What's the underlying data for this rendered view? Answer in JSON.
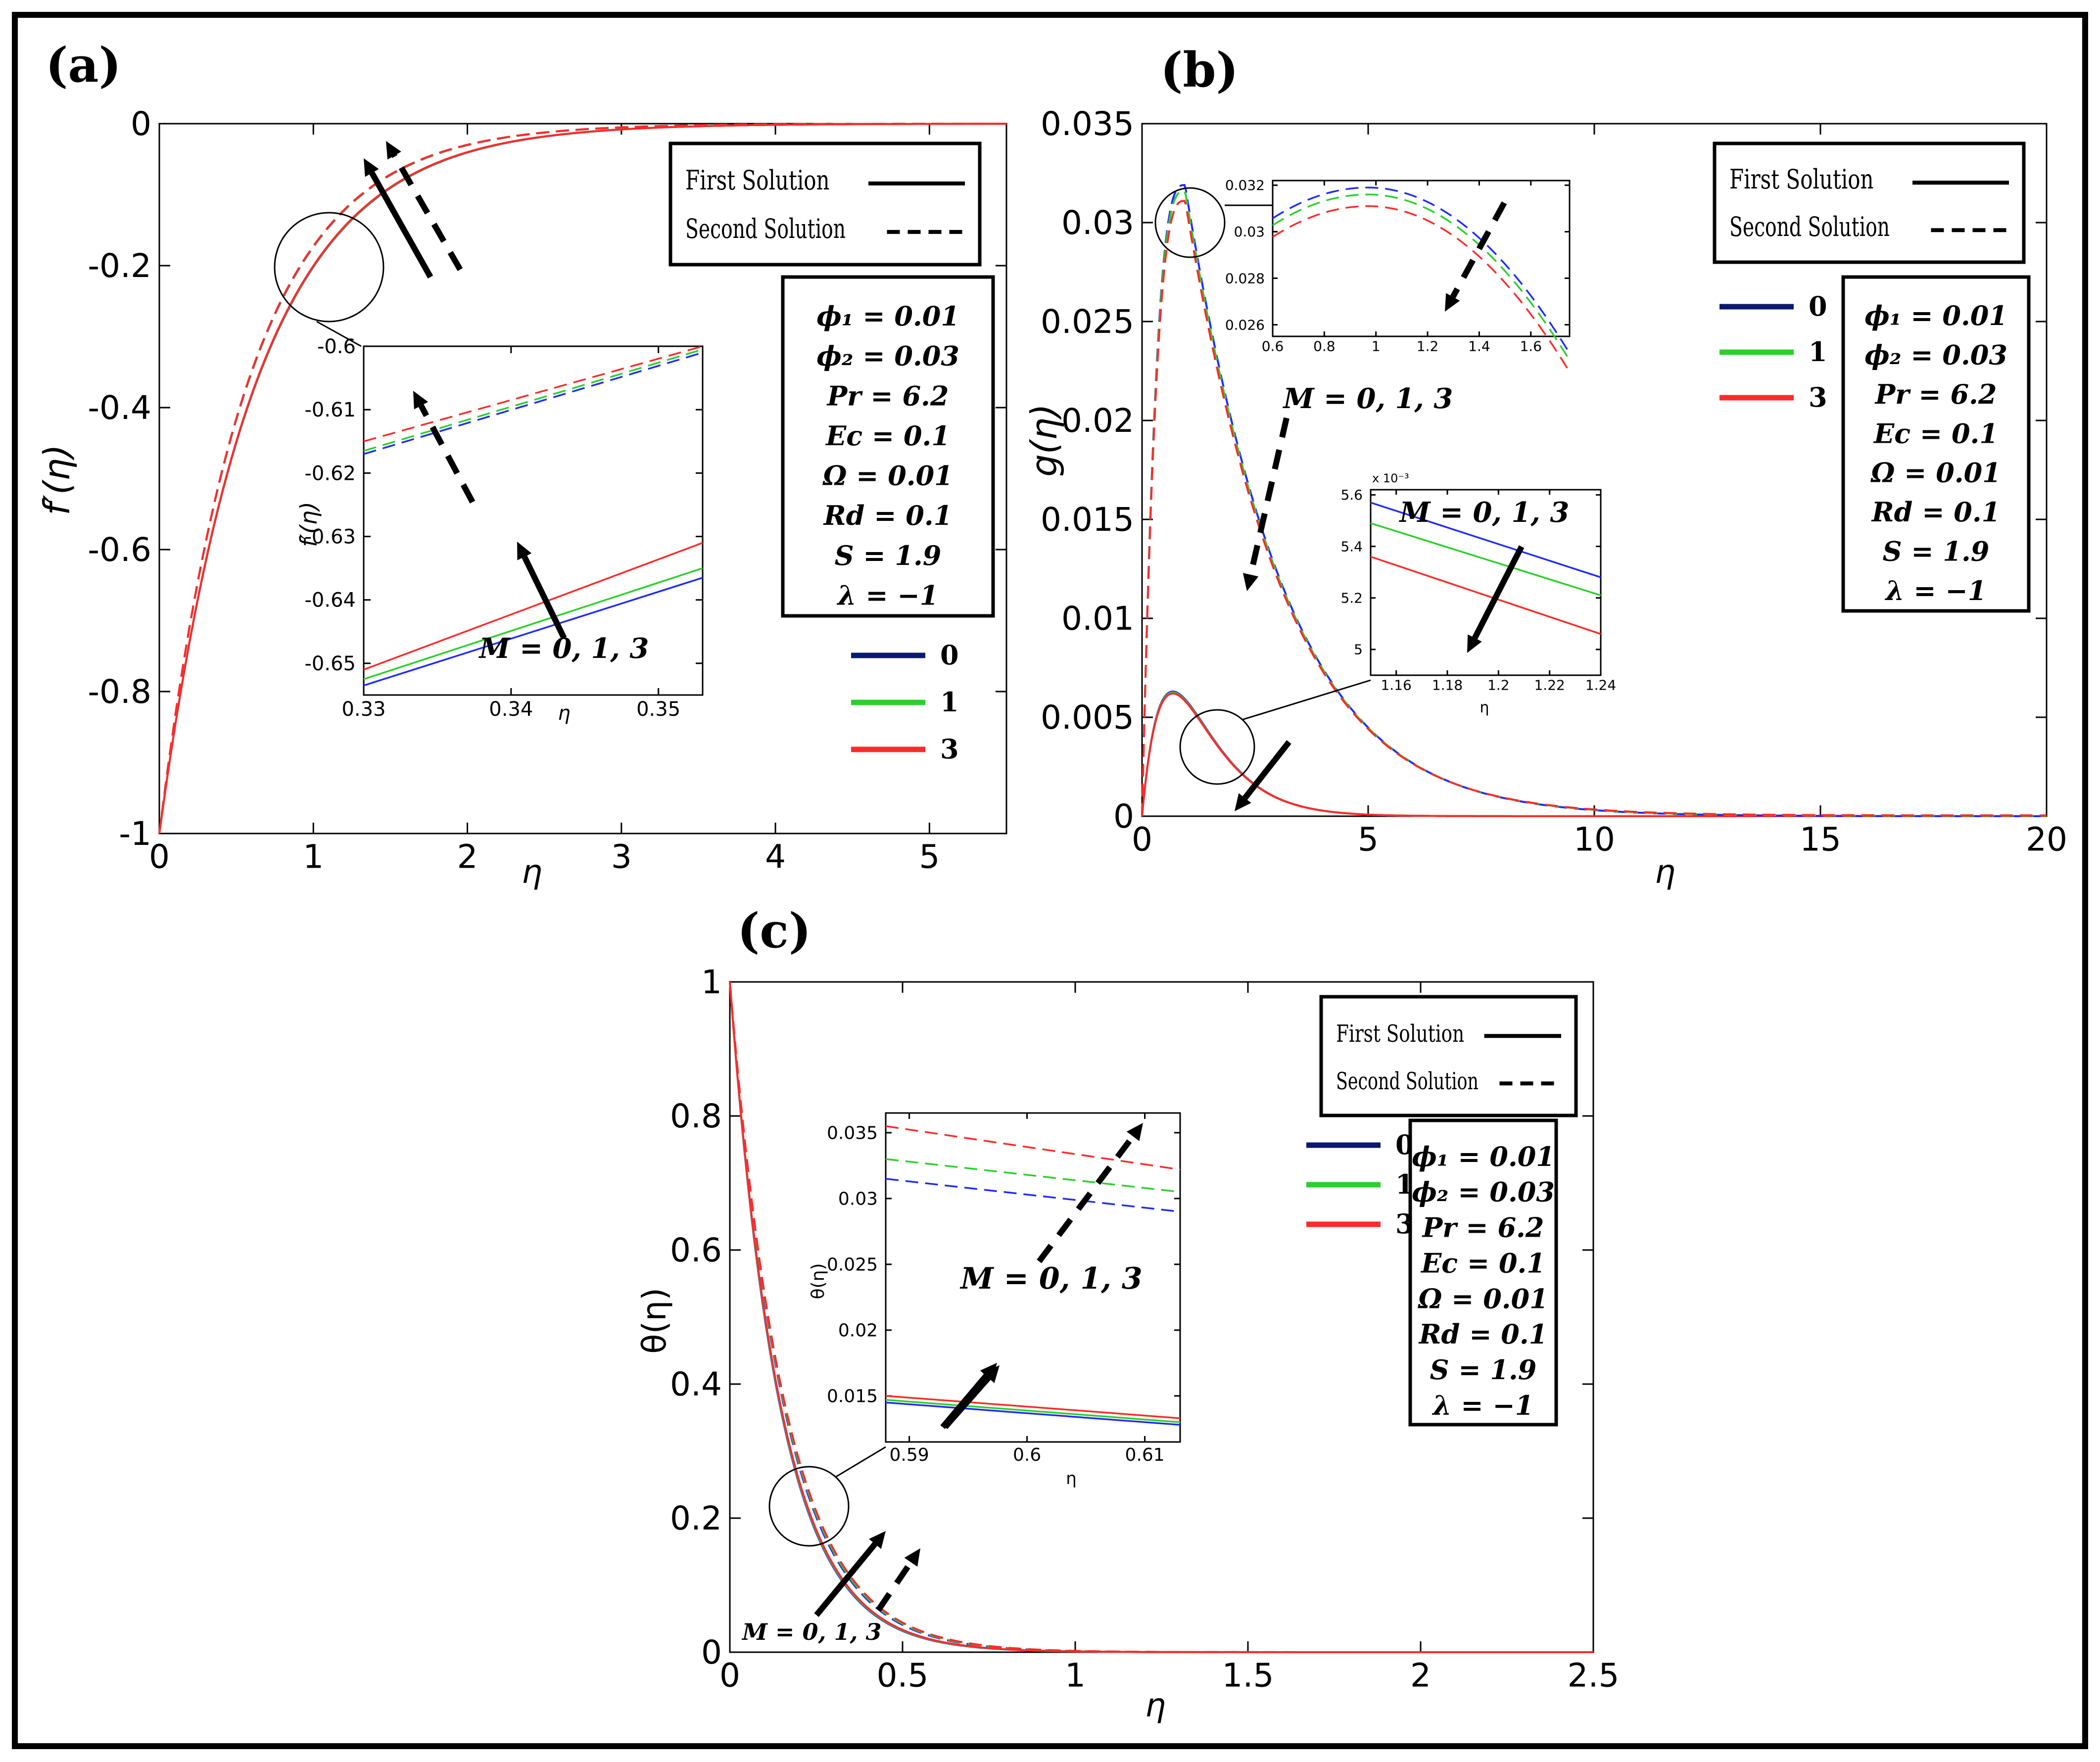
{
  "colors": {
    "m0": "#1f2bff",
    "m1": "#2bd02b",
    "m3": "#ff2a2a",
    "legend_m0": "#0b1a6e",
    "frame": "#000000"
  },
  "legend": {
    "first_solution": "First Solution",
    "second_solution": "Second Solution",
    "m_values": [
      "0",
      "1",
      "3"
    ]
  },
  "params": [
    "ϕ₁ = 0.01",
    "ϕ₂ = 0.03",
    "Pr = 6.2",
    "Ec = 0.1",
    "Ω = 0.01",
    "Rd = 0.1",
    "S = 1.9",
    "λ = −1"
  ],
  "annotation": "M = 0, 1, 3",
  "chart_data": [
    {
      "id": "a",
      "panel_label": "(a)",
      "type": "line",
      "xlabel": "η",
      "ylabel": "f′(η)",
      "xlim": [
        0,
        5.5
      ],
      "ylim": [
        -1,
        0
      ],
      "xticks": [
        0,
        1,
        2,
        3,
        4,
        5
      ],
      "xtick_labels": [
        "0",
        "1",
        "2",
        "3",
        "4",
        "5"
      ],
      "yticks": [
        -1,
        -0.8,
        -0.6,
        -0.4,
        -0.2,
        0
      ],
      "ytick_labels": [
        "-1",
        "-0.8",
        "-0.6",
        "-0.4",
        "-0.2",
        "0"
      ],
      "model": {
        "kind": "exp",
        "a": 1.6,
        "second_a": 1.75
      },
      "series": [
        {
          "name": "M = 0",
          "solution": "first"
        },
        {
          "name": "M = 1",
          "solution": "first"
        },
        {
          "name": "M = 3",
          "solution": "first"
        },
        {
          "name": "M = 0",
          "solution": "second"
        },
        {
          "name": "M = 1",
          "solution": "second"
        },
        {
          "name": "M = 3",
          "solution": "second"
        }
      ],
      "inset": {
        "xlim": [
          0.33,
          0.353
        ],
        "ylim": [
          -0.655,
          -0.6
        ],
        "xticks": [
          0.33,
          0.34,
          0.35
        ],
        "xtick_labels": [
          "0.33",
          "0.34",
          "0.35"
        ],
        "yticks": [
          -0.65,
          -0.64,
          -0.63,
          -0.62,
          -0.61,
          -0.6
        ],
        "ytick_labels": [
          "-0.65",
          "-0.64",
          "-0.63",
          "-0.62",
          "-0.61",
          "-0.6"
        ],
        "xlabel": "η",
        "ylabel": "f′(η)",
        "first": [
          {
            "x": [
              0.33,
              0.353
            ],
            "y": [
              -0.6535,
              -0.6365
            ]
          },
          {
            "x": [
              0.33,
              0.353
            ],
            "y": [
              -0.6525,
              -0.635
            ]
          },
          {
            "x": [
              0.33,
              0.353
            ],
            "y": [
              -0.651,
              -0.631
            ]
          }
        ],
        "second": [
          {
            "x": [
              0.33,
              0.353
            ],
            "y": [
              -0.617,
              -0.601
            ]
          },
          {
            "x": [
              0.33,
              0.353
            ],
            "y": [
              -0.6165,
              -0.6005
            ]
          },
          {
            "x": [
              0.33,
              0.353
            ],
            "y": [
              -0.615,
              -0.6
            ]
          }
        ]
      }
    },
    {
      "id": "b",
      "panel_label": "(b)",
      "type": "line",
      "xlabel": "η",
      "ylabel": "g(η)",
      "xlim": [
        0,
        20
      ],
      "ylim": [
        0,
        0.035
      ],
      "xticks": [
        0,
        5,
        10,
        15,
        20
      ],
      "xtick_labels": [
        "0",
        "5",
        "10",
        "15",
        "20"
      ],
      "yticks": [
        0,
        0.005,
        0.01,
        0.015,
        0.02,
        0.025,
        0.03,
        0.035
      ],
      "ytick_labels": [
        "0",
        "0.005",
        "0.01",
        "0.015",
        "0.02",
        "0.025",
        "0.03",
        "0.035"
      ],
      "peaks": {
        "first": {
          "eta": 0.68,
          "g": [
            0.0063,
            0.00625,
            0.0062
          ]
        },
        "second": {
          "eta": 0.95,
          "g": [
            0.0319,
            0.0316,
            0.0311
          ]
        }
      },
      "series": [
        {
          "name": "M = 0",
          "solution": "first"
        },
        {
          "name": "M = 1",
          "solution": "first"
        },
        {
          "name": "M = 3",
          "solution": "first"
        },
        {
          "name": "M = 0",
          "solution": "second"
        },
        {
          "name": "M = 1",
          "solution": "second"
        },
        {
          "name": "M = 3",
          "solution": "second"
        }
      ],
      "inset_top": {
        "xlim": [
          0.6,
          1.75
        ],
        "ylim": [
          0.0255,
          0.0322
        ],
        "xticks": [
          0.6,
          0.8,
          1,
          1.2,
          1.4,
          1.6
        ],
        "xtick_labels": [
          "0.6",
          "0.8",
          "1",
          "1.2",
          "1.4",
          "1.6"
        ],
        "yticks": [
          0.026,
          0.028,
          0.03,
          0.032
        ],
        "ytick_labels": [
          "0.026",
          "0.028",
          "0.03",
          "0.032"
        ]
      },
      "inset_mid": {
        "xlim": [
          1.15,
          1.24
        ],
        "ylim": [
          4.9,
          5.62
        ],
        "xticks": [
          1.16,
          1.18,
          1.2,
          1.22,
          1.24
        ],
        "xtick_labels": [
          "1.16",
          "1.18",
          "1.2",
          "1.22",
          "1.24"
        ],
        "yticks": [
          5,
          5.2,
          5.4,
          5.6
        ],
        "ytick_labels": [
          "5",
          "5.2",
          "5.4",
          "5.6"
        ],
        "exponent": "x 10⁻³",
        "xlabel": "η",
        "lines": [
          {
            "x": [
              1.15,
              1.24
            ],
            "y": [
              5.57,
              5.28
            ]
          },
          {
            "x": [
              1.15,
              1.24
            ],
            "y": [
              5.49,
              5.21
            ]
          },
          {
            "x": [
              1.15,
              1.24
            ],
            "y": [
              5.36,
              5.06
            ]
          }
        ]
      }
    },
    {
      "id": "c",
      "panel_label": "(c)",
      "type": "line",
      "xlabel": "η",
      "ylabel": "θ(η)",
      "xlim": [
        0,
        2.5
      ],
      "ylim": [
        0,
        1
      ],
      "xticks": [
        0,
        0.5,
        1,
        1.5,
        2,
        2.5
      ],
      "xtick_labels": [
        "0",
        "0.5",
        "1",
        "1.5",
        "2",
        "2.5"
      ],
      "yticks": [
        0,
        0.2,
        0.4,
        0.6,
        0.8,
        1
      ],
      "ytick_labels": [
        "0",
        "0.2",
        "0.4",
        "0.6",
        "0.8",
        "1"
      ],
      "model": {
        "kind": "exp",
        "a": 6.9,
        "second_a": 6.4
      },
      "series": [
        {
          "name": "M = 0",
          "solution": "first"
        },
        {
          "name": "M = 1",
          "solution": "first"
        },
        {
          "name": "M = 3",
          "solution": "first"
        },
        {
          "name": "M = 0",
          "solution": "second"
        },
        {
          "name": "M = 1",
          "solution": "second"
        },
        {
          "name": "M = 3",
          "solution": "second"
        }
      ],
      "inset": {
        "xlim": [
          0.588,
          0.613
        ],
        "ylim": [
          0.0115,
          0.0365
        ],
        "xticks": [
          0.59,
          0.6,
          0.61
        ],
        "xtick_labels": [
          "0.59",
          "0.6",
          "0.61"
        ],
        "yticks": [
          0.015,
          0.02,
          0.025,
          0.03,
          0.035
        ],
        "ytick_labels": [
          "0.015",
          "0.02",
          "0.025",
          "0.03",
          "0.035"
        ],
        "xlabel": "η",
        "ylabel": "θ(η)",
        "second": [
          {
            "x": [
              0.588,
              0.613
            ],
            "y": [
              0.0315,
              0.029
            ]
          },
          {
            "x": [
              0.588,
              0.613
            ],
            "y": [
              0.033,
              0.0305
            ]
          },
          {
            "x": [
              0.588,
              0.613
            ],
            "y": [
              0.0355,
              0.0322
            ]
          }
        ],
        "first": [
          {
            "x": [
              0.588,
              0.613
            ],
            "y": [
              0.0145,
              0.0128
            ]
          },
          {
            "x": [
              0.588,
              0.613
            ],
            "y": [
              0.0147,
              0.013
            ]
          },
          {
            "x": [
              0.588,
              0.613
            ],
            "y": [
              0.015,
              0.0133
            ]
          }
        ]
      }
    }
  ]
}
